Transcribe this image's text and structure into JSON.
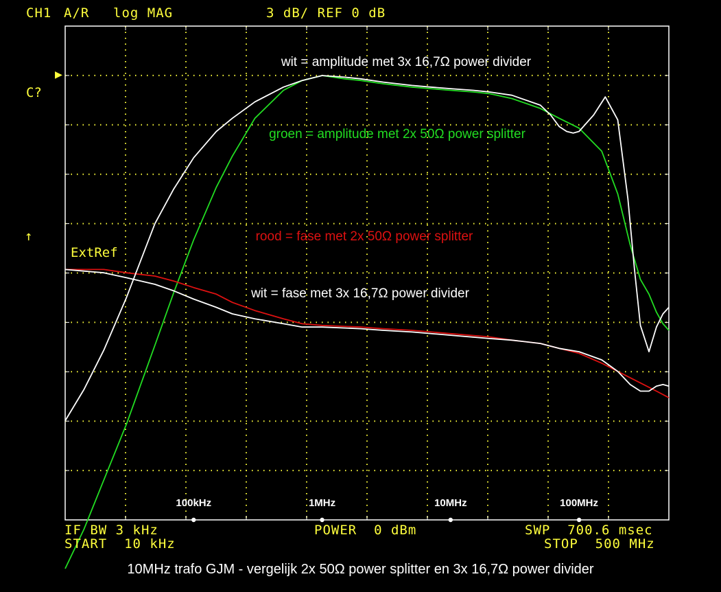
{
  "header": {
    "channel": "CH1",
    "measurement": "A/R",
    "format": "log MAG",
    "scale": "3 dB/ REF 0 dB"
  },
  "side_labels": {
    "cal": "C?",
    "arrow": "↑",
    "extref": "ExtRef"
  },
  "footer": {
    "ifbw": "IF BW 3 kHz",
    "power": "POWER  0 dBm",
    "swp": "SWP  700.6 msec",
    "start": "START  10 kHz",
    "stop": "STOP  500 MHz"
  },
  "caption": "10MHz trafo GJM - vergelijk 2x 50Ω power splitter en 3x 16,7Ω power divider",
  "colors": {
    "instrument": "#ffff3c",
    "white": "#ffffff",
    "green": "#22dd22",
    "red": "#dd1111"
  },
  "chart_data": {
    "type": "line",
    "x_scale": "log",
    "x_range_hz": [
      10000,
      500000000
    ],
    "y_unit": "dB",
    "y_per_div": 3,
    "y_ref_db": 0,
    "grid": true,
    "freq_markers": [
      {
        "label": "100kHz",
        "hz": 100000
      },
      {
        "label": "1MHz",
        "hz": 1000000
      },
      {
        "label": "10MHz",
        "hz": 10000000
      },
      {
        "label": "100MHz",
        "hz": 100000000
      }
    ],
    "annotations": [
      {
        "text": "wit = amplitude met 3x 16,7Ω power divider",
        "color": "#ffffff",
        "series": "amp_white"
      },
      {
        "text": "groen = amplitude met 2x 50Ω power splitter",
        "color": "#22dd22",
        "series": "amp_green"
      },
      {
        "text": "rood = fase met 2x 50Ω power splitter",
        "color": "#dd1111",
        "series": "phase_red"
      },
      {
        "text": "wit = fase met 3x 16,7Ω power divider",
        "color": "#ffffff",
        "series": "phase_white"
      }
    ],
    "series": [
      {
        "id": "amp_white",
        "color": "#ffffff",
        "x": [
          10000,
          14000,
          20000,
          30000,
          50000,
          70000,
          100000,
          150000,
          200000,
          300000,
          500000,
          700000,
          1000000,
          1500000,
          2000000,
          3000000,
          5000000,
          7000000,
          10000000,
          15000000,
          20000000,
          30000000,
          50000000,
          60000000,
          70000000,
          80000000,
          90000000,
          100000000,
          130000000,
          160000000,
          200000000,
          240000000,
          270000000,
          300000000,
          350000000,
          400000000,
          450000000,
          500000000
        ],
        "y": [
          -21.0,
          -19.1,
          -16.7,
          -13.5,
          -9.0,
          -6.9,
          -5.0,
          -3.4,
          -2.6,
          -1.6,
          -0.7,
          -0.3,
          0.0,
          -0.1,
          -0.2,
          -0.4,
          -0.6,
          -0.7,
          -0.8,
          -0.9,
          -1.0,
          -1.2,
          -1.8,
          -2.4,
          -3.1,
          -3.4,
          -3.5,
          -3.4,
          -2.4,
          -1.3,
          -2.7,
          -7.5,
          -11.8,
          -15.2,
          -16.8,
          -15.3,
          -14.5,
          -14.1
        ]
      },
      {
        "id": "amp_green",
        "color": "#22dd22",
        "x": [
          10000,
          14000,
          20000,
          30000,
          50000,
          70000,
          100000,
          150000,
          200000,
          300000,
          500000,
          700000,
          1000000,
          1500000,
          2000000,
          3000000,
          5000000,
          7000000,
          10000000,
          15000000,
          20000000,
          30000000,
          50000000,
          70000000,
          100000000,
          150000000,
          200000000,
          250000000,
          300000000,
          350000000,
          400000000,
          450000000,
          500000000
        ],
        "y": [
          -30.0,
          -27.6,
          -24.6,
          -21.2,
          -16.4,
          -13.2,
          -10.0,
          -6.8,
          -4.9,
          -2.6,
          -0.9,
          -0.3,
          0.0,
          -0.2,
          -0.3,
          -0.5,
          -0.7,
          -0.8,
          -0.9,
          -1.0,
          -1.1,
          -1.4,
          -2.0,
          -2.6,
          -3.2,
          -4.6,
          -7.2,
          -10.3,
          -12.4,
          -13.3,
          -14.4,
          -15.1,
          -15.5
        ]
      },
      {
        "id": "phase_red",
        "color": "#dd1111",
        "x": [
          10000,
          20000,
          30000,
          50000,
          70000,
          100000,
          150000,
          200000,
          300000,
          500000,
          700000,
          1000000,
          2000000,
          3000000,
          5000000,
          10000000,
          20000000,
          30000000,
          50000000,
          70000000,
          100000000,
          150000000,
          200000000,
          300000000,
          400000000,
          500000000
        ],
        "y": [
          -11.8,
          -11.8,
          -12.0,
          -12.2,
          -12.5,
          -12.9,
          -13.3,
          -13.8,
          -14.3,
          -14.8,
          -15.1,
          -15.2,
          -15.3,
          -15.4,
          -15.5,
          -15.7,
          -15.9,
          -16.1,
          -16.3,
          -16.6,
          -16.9,
          -17.5,
          -18.0,
          -18.7,
          -19.2,
          -19.6
        ]
      },
      {
        "id": "phase_white",
        "color": "#ffffff",
        "x": [
          10000,
          20000,
          30000,
          50000,
          70000,
          100000,
          150000,
          200000,
          300000,
          500000,
          700000,
          1000000,
          2000000,
          3000000,
          5000000,
          10000000,
          20000000,
          30000000,
          50000000,
          70000000,
          100000000,
          150000000,
          200000000,
          250000000,
          300000000,
          350000000,
          400000000,
          450000000,
          500000000
        ],
        "y": [
          -11.8,
          -12.0,
          -12.3,
          -12.7,
          -13.1,
          -13.6,
          -14.1,
          -14.5,
          -14.8,
          -15.1,
          -15.3,
          -15.3,
          -15.4,
          -15.5,
          -15.6,
          -15.8,
          -16.0,
          -16.1,
          -16.3,
          -16.6,
          -16.8,
          -17.3,
          -18.0,
          -18.8,
          -19.2,
          -19.2,
          -18.9,
          -18.8,
          -18.9
        ]
      }
    ]
  }
}
